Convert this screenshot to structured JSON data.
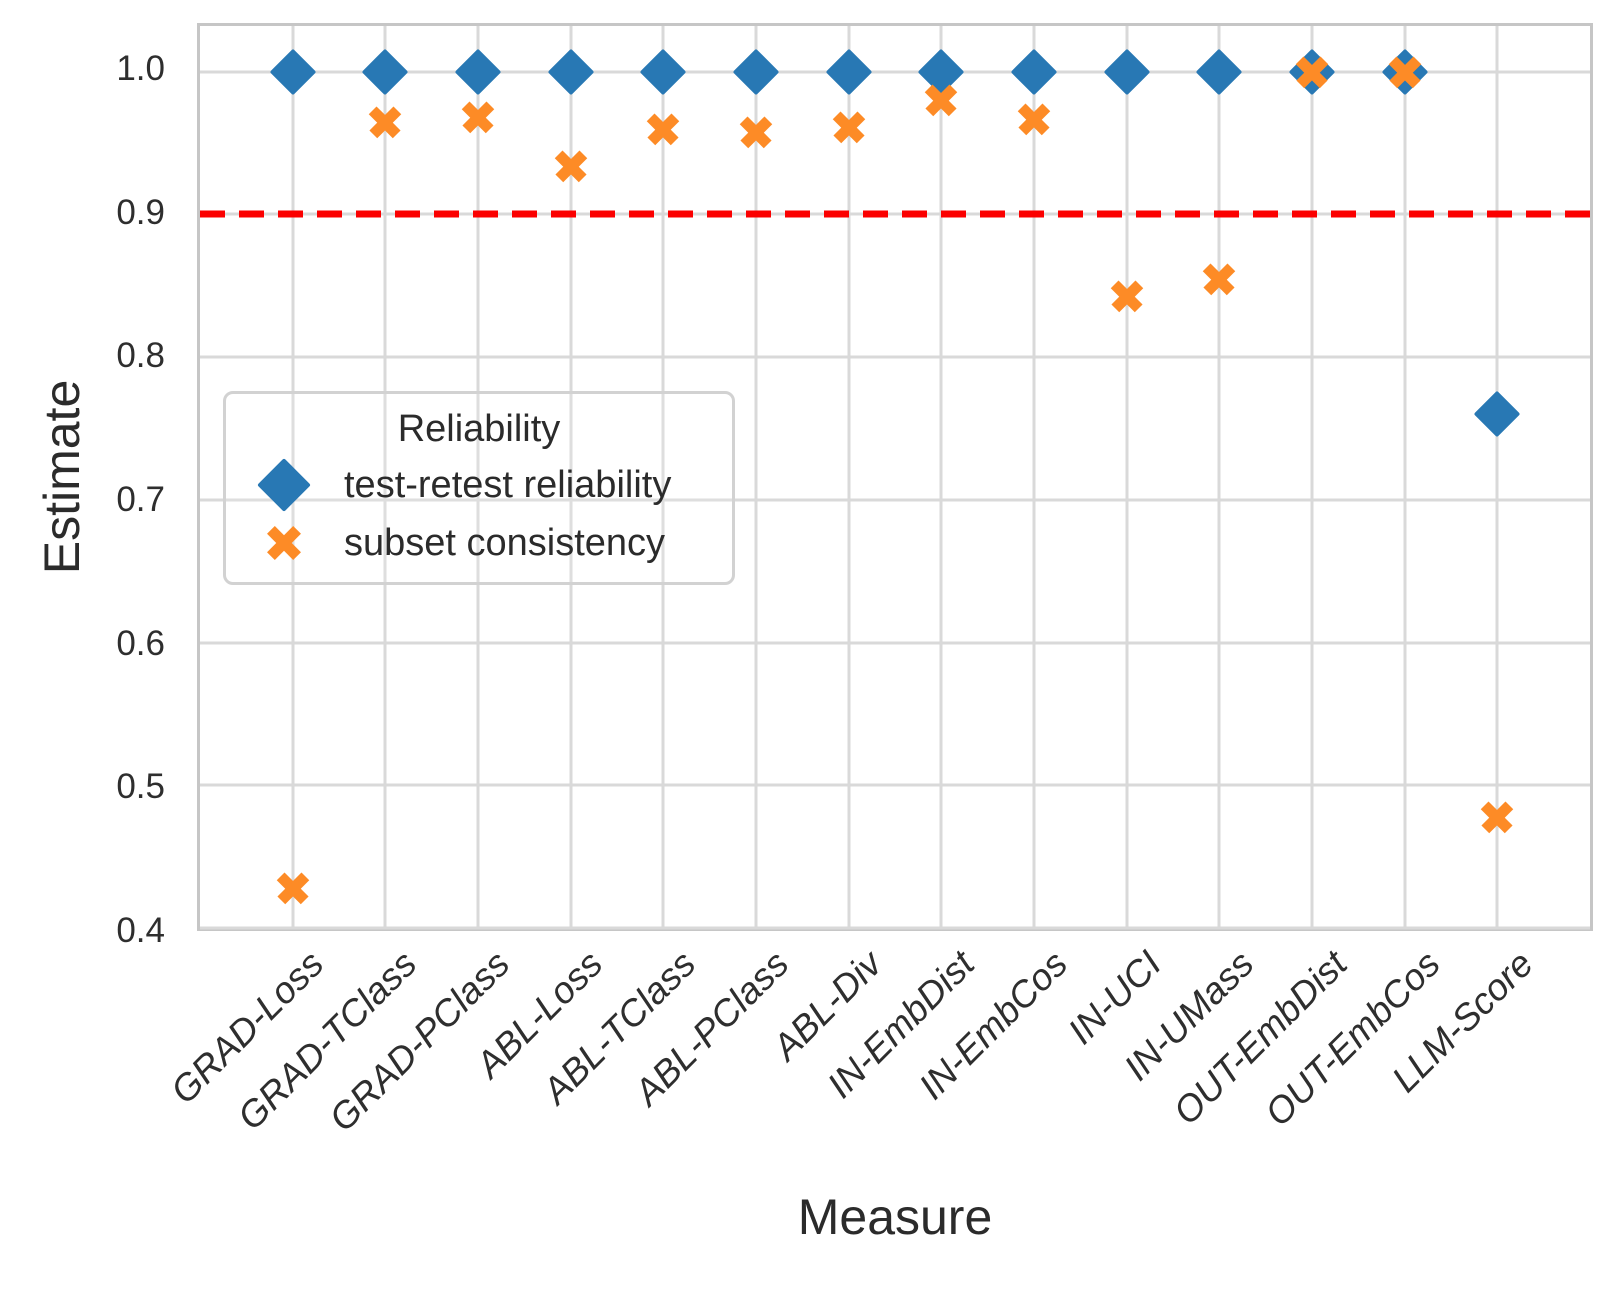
{
  "colors": {
    "series_blue": "#2878b4",
    "series_orange": "#fd8b26",
    "reference_red": "#fb0000",
    "grid": "#d9d9d9",
    "spine": "#c6c6c6",
    "text": "#2b2b2b"
  },
  "chart_data": {
    "type": "scatter",
    "title": "",
    "xlabel": "Measure",
    "ylabel": "Estimate",
    "categories": [
      "GRAD-Loss",
      "GRAD-TClass",
      "GRAD-PClass",
      "ABL-Loss",
      "ABL-TClass",
      "ABL-PClass",
      "ABL-Div",
      "IN-EmbDist",
      "IN-EmbCos",
      "IN-UCI",
      "IN-UMass",
      "OUT-EmbDist",
      "OUT-EmbCos",
      "LLM-Score"
    ],
    "series": [
      {
        "name": "test-retest reliability",
        "marker": "diamond",
        "color": "#2878b4",
        "values": [
          1.0,
          1.0,
          1.0,
          1.0,
          1.0,
          1.0,
          1.0,
          1.0,
          1.0,
          1.0,
          1.0,
          1.0,
          1.0,
          0.76
        ]
      },
      {
        "name": "subset consistency",
        "marker": "x",
        "color": "#fd8b26",
        "values": [
          0.428,
          0.965,
          0.968,
          0.934,
          0.96,
          0.958,
          0.961,
          0.98,
          0.967,
          0.843,
          0.855,
          1.0,
          1.0,
          0.478
        ]
      }
    ],
    "legend": {
      "title": "Reliability",
      "position": "upper left inside"
    },
    "reference_line": {
      "y": 0.9,
      "style": "dashed",
      "color": "#fb0000"
    },
    "ylim": [
      0.4,
      1.032
    ],
    "yticks": [
      "1.0",
      "0.9",
      "0.8",
      "0.7",
      "0.6",
      "0.5",
      "0.4"
    ],
    "grid": true
  }
}
